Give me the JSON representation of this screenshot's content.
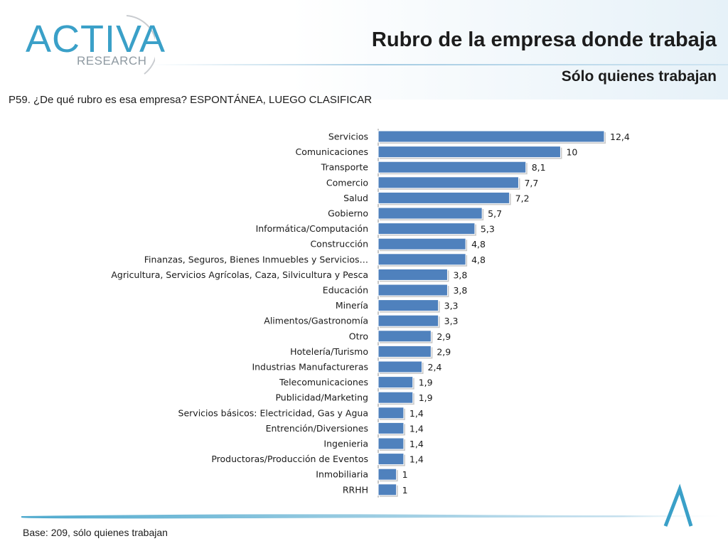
{
  "header": {
    "logo_text": "ACTIVA",
    "logo_subtext": "RESEARCH",
    "title": "Rubro de la empresa donde trabaja",
    "subtitle": "Sólo quienes trabajan"
  },
  "question": "P59. ¿De qué rubro es esa empresa? ESPONTÁNEA, LUEGO CLASIFICAR",
  "footer": {
    "base_note": "Base: 209, sólo quienes trabajan"
  },
  "colors": {
    "bar": "#4f81bd",
    "accent": "#3aa0c8"
  },
  "chart_data": {
    "type": "bar",
    "orientation": "horizontal",
    "categories": [
      "Servicios",
      "Comunicaciones",
      "Transporte",
      "Comercio",
      "Salud",
      "Gobierno",
      "Informática/Computación",
      "Construcción",
      "Finanzas, Seguros, Bienes Inmuebles y Servicios…",
      "Agricultura, Servicios Agrícolas, Caza, Silvicultura y Pesca",
      "Educación",
      "Minería",
      "Alimentos/Gastronomía",
      "Otro",
      "Hotelería/Turismo",
      "Industrias Manufactureras",
      "Telecomunicaciones",
      "Publicidad/Marketing",
      "Servicios básicos: Electricidad, Gas y Agua",
      "Entrención/Diversiones",
      "Ingenieria",
      "Productoras/Producción de Eventos",
      "Inmobiliaria",
      "RRHH"
    ],
    "values": [
      12.4,
      10,
      8.1,
      7.7,
      7.2,
      5.7,
      5.3,
      4.8,
      4.8,
      3.8,
      3.8,
      3.3,
      3.3,
      2.9,
      2.9,
      2.4,
      1.9,
      1.9,
      1.4,
      1.4,
      1.4,
      1.4,
      1,
      1
    ],
    "value_labels": [
      "12,4",
      "10",
      "8,1",
      "7,7",
      "7,2",
      "5,7",
      "5,3",
      "4,8",
      "4,8",
      "3,8",
      "3,8",
      "3,3",
      "3,3",
      "2,9",
      "2,9",
      "2,4",
      "1,9",
      "1,9",
      "1,4",
      "1,4",
      "1,4",
      "1,4",
      "1",
      "1"
    ],
    "xlim": [
      0,
      12.4
    ],
    "grid": false,
    "legend": "none"
  }
}
